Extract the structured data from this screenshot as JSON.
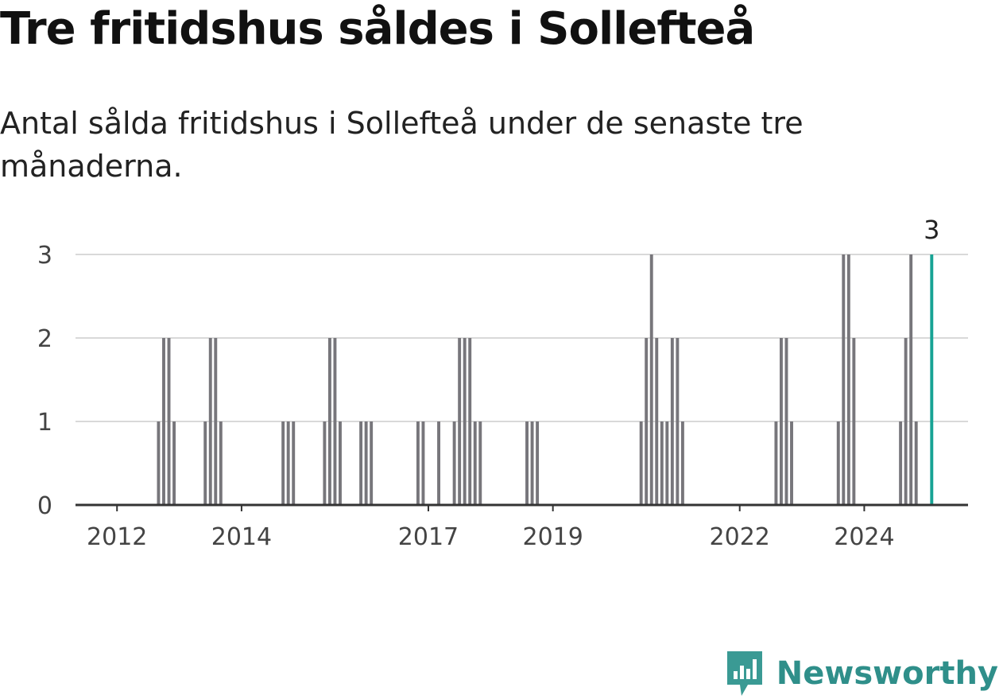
{
  "header": {
    "title": "Tre fritidshus såldes i Sollefteå",
    "subtitle": "Antal sålda fritidshus i Sollefteå under de senaste tre månaderna."
  },
  "brand": {
    "name": "Newsworthy",
    "color": "#3a9a94"
  },
  "colors": {
    "bar": "#77767b",
    "highlight": "#17a394",
    "grid": "#d9d9d9",
    "axis": "#333333"
  },
  "chart_data": {
    "type": "bar",
    "title": "Tre fritidshus såldes i Sollefteå",
    "subtitle": "Antal sålda fritidshus i Sollefteå under de senaste tre månaderna.",
    "xlabel": "",
    "ylabel": "",
    "ylim": [
      0,
      3
    ],
    "yticks": [
      0,
      1,
      2,
      3
    ],
    "xticks": [
      "2012",
      "2014",
      "2017",
      "2019",
      "2022",
      "2024"
    ],
    "x_range": [
      "2011-05",
      "2025-09"
    ],
    "grid": true,
    "highlight_label": "3",
    "series": [
      {
        "values": [
          {
            "x": "2012-09",
            "y": 1
          },
          {
            "x": "2012-10",
            "y": 2
          },
          {
            "x": "2012-11",
            "y": 2
          },
          {
            "x": "2012-12",
            "y": 1
          },
          {
            "x": "2013-06",
            "y": 1
          },
          {
            "x": "2013-07",
            "y": 2
          },
          {
            "x": "2013-08",
            "y": 2
          },
          {
            "x": "2013-09",
            "y": 1
          },
          {
            "x": "2014-09",
            "y": 1
          },
          {
            "x": "2014-10",
            "y": 1
          },
          {
            "x": "2014-11",
            "y": 1
          },
          {
            "x": "2015-05",
            "y": 1
          },
          {
            "x": "2015-06",
            "y": 2
          },
          {
            "x": "2015-07",
            "y": 2
          },
          {
            "x": "2015-08",
            "y": 1
          },
          {
            "x": "2015-12",
            "y": 1
          },
          {
            "x": "2016-01",
            "y": 1
          },
          {
            "x": "2016-02",
            "y": 1
          },
          {
            "x": "2016-11",
            "y": 1
          },
          {
            "x": "2016-12",
            "y": 1
          },
          {
            "x": "2017-03",
            "y": 1
          },
          {
            "x": "2017-06",
            "y": 1
          },
          {
            "x": "2017-07",
            "y": 2
          },
          {
            "x": "2017-08",
            "y": 2
          },
          {
            "x": "2017-09",
            "y": 2
          },
          {
            "x": "2017-10",
            "y": 1
          },
          {
            "x": "2017-11",
            "y": 1
          },
          {
            "x": "2018-08",
            "y": 1
          },
          {
            "x": "2018-09",
            "y": 1
          },
          {
            "x": "2018-10",
            "y": 1
          },
          {
            "x": "2020-06",
            "y": 1
          },
          {
            "x": "2020-07",
            "y": 2
          },
          {
            "x": "2020-08",
            "y": 3
          },
          {
            "x": "2020-09",
            "y": 2
          },
          {
            "x": "2020-10",
            "y": 1
          },
          {
            "x": "2020-11",
            "y": 1
          },
          {
            "x": "2020-12",
            "y": 2
          },
          {
            "x": "2021-01",
            "y": 2
          },
          {
            "x": "2021-02",
            "y": 1
          },
          {
            "x": "2022-08",
            "y": 1
          },
          {
            "x": "2022-09",
            "y": 2
          },
          {
            "x": "2022-10",
            "y": 2
          },
          {
            "x": "2022-11",
            "y": 1
          },
          {
            "x": "2023-08",
            "y": 1
          },
          {
            "x": "2023-09",
            "y": 3
          },
          {
            "x": "2023-10",
            "y": 3
          },
          {
            "x": "2023-11",
            "y": 2
          },
          {
            "x": "2024-08",
            "y": 1
          },
          {
            "x": "2024-09",
            "y": 2
          },
          {
            "x": "2024-10",
            "y": 3
          },
          {
            "x": "2024-11",
            "y": 1
          },
          {
            "x": "2025-02",
            "y": 3,
            "highlight": true
          }
        ]
      }
    ]
  }
}
